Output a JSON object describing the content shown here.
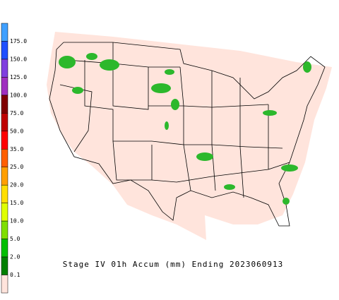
{
  "title": "Stage IV 01h Accum (mm) Ending 2023060913",
  "legend": {
    "labels": [
      "175.0",
      "150.0",
      "125.0",
      "100.0",
      "75.0",
      "50.0",
      "35.0",
      "25.0",
      "20.0",
      "15.0",
      "10.0",
      "5.0",
      "2.0",
      "0.1"
    ],
    "colors": [
      "#3fa0ff",
      "#1f4fff",
      "#7f3fdf",
      "#9f2fbf",
      "#7f0000",
      "#bf0000",
      "#ff0000",
      "#ff5f00",
      "#ff9f00",
      "#ffdf00",
      "#dfff00",
      "#7fdf00",
      "#00bf00",
      "#007f00",
      "#ffe4dc"
    ]
  }
}
